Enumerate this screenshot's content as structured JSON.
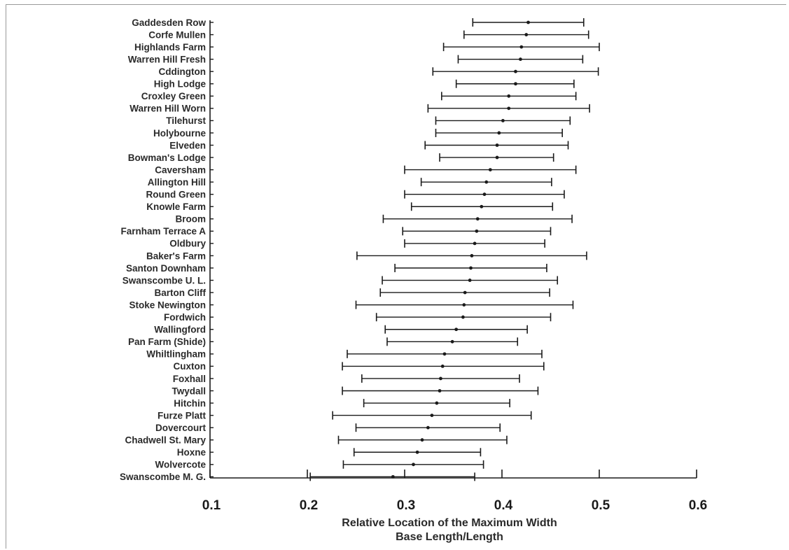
{
  "chart_data": {
    "type": "errorbar",
    "orientation": "horizontal",
    "xlabel": [
      "Relative Location of the Maximum Width",
      "Base Length/Length"
    ],
    "xlim": [
      0.1,
      0.6
    ],
    "xticks": [
      "0.1",
      "0.2",
      "0.3",
      "0.4",
      "0.5",
      "0.6"
    ],
    "grid": false,
    "colors": {
      "marks": "#1a1a1a",
      "text": "#2a2a2a",
      "frame": "#9a9a9a"
    },
    "sites": [
      {
        "name": "Gaddesden Row",
        "mean": 0.427,
        "low": 0.37,
        "high": 0.484
      },
      {
        "name": "Corfe Mullen",
        "mean": 0.425,
        "low": 0.361,
        "high": 0.489
      },
      {
        "name": "Highlands Farm",
        "mean": 0.42,
        "low": 0.34,
        "high": 0.5
      },
      {
        "name": "Warren Hill Fresh",
        "mean": 0.419,
        "low": 0.355,
        "high": 0.483
      },
      {
        "name": "Cddington",
        "mean": 0.414,
        "low": 0.329,
        "high": 0.499
      },
      {
        "name": "High Lodge",
        "mean": 0.414,
        "low": 0.353,
        "high": 0.474
      },
      {
        "name": "Croxley Green",
        "mean": 0.407,
        "low": 0.338,
        "high": 0.476
      },
      {
        "name": "Warren Hill Worn",
        "mean": 0.407,
        "low": 0.324,
        "high": 0.49
      },
      {
        "name": "Tilehurst",
        "mean": 0.401,
        "low": 0.332,
        "high": 0.47
      },
      {
        "name": "Holybourne",
        "mean": 0.397,
        "low": 0.332,
        "high": 0.462
      },
      {
        "name": "Elveden",
        "mean": 0.395,
        "low": 0.321,
        "high": 0.468
      },
      {
        "name": "Bowman's Lodge",
        "mean": 0.395,
        "low": 0.336,
        "high": 0.453
      },
      {
        "name": "Caversham",
        "mean": 0.388,
        "low": 0.3,
        "high": 0.476
      },
      {
        "name": "Allington Hill",
        "mean": 0.384,
        "low": 0.317,
        "high": 0.451
      },
      {
        "name": "Round Green",
        "mean": 0.382,
        "low": 0.3,
        "high": 0.464
      },
      {
        "name": "Knowle Farm",
        "mean": 0.379,
        "low": 0.307,
        "high": 0.452
      },
      {
        "name": "Broom",
        "mean": 0.375,
        "low": 0.278,
        "high": 0.472
      },
      {
        "name": "Farnham Terrace A",
        "mean": 0.374,
        "low": 0.298,
        "high": 0.45
      },
      {
        "name": "Oldbury",
        "mean": 0.372,
        "low": 0.3,
        "high": 0.444
      },
      {
        "name": "Baker's Farm",
        "mean": 0.369,
        "low": 0.251,
        "high": 0.487
      },
      {
        "name": "Santon Downham",
        "mean": 0.368,
        "low": 0.29,
        "high": 0.446
      },
      {
        "name": "Swanscombe U. L.",
        "mean": 0.367,
        "low": 0.277,
        "high": 0.457
      },
      {
        "name": "Barton Cliff",
        "mean": 0.362,
        "low": 0.275,
        "high": 0.449
      },
      {
        "name": "Stoke Newington",
        "mean": 0.361,
        "low": 0.25,
        "high": 0.473
      },
      {
        "name": "Fordwich",
        "mean": 0.36,
        "low": 0.271,
        "high": 0.45
      },
      {
        "name": "Wallingford",
        "mean": 0.353,
        "low": 0.28,
        "high": 0.426
      },
      {
        "name": "Pan Farm (Shide)",
        "mean": 0.349,
        "low": 0.282,
        "high": 0.416
      },
      {
        "name": "Whiltlingham",
        "mean": 0.341,
        "low": 0.241,
        "high": 0.441
      },
      {
        "name": "Cuxton",
        "mean": 0.339,
        "low": 0.236,
        "high": 0.443
      },
      {
        "name": "Foxhall",
        "mean": 0.337,
        "low": 0.256,
        "high": 0.418
      },
      {
        "name": "Twydall",
        "mean": 0.336,
        "low": 0.236,
        "high": 0.437
      },
      {
        "name": "Hitchin",
        "mean": 0.333,
        "low": 0.258,
        "high": 0.408
      },
      {
        "name": "Furze Platt",
        "mean": 0.328,
        "low": 0.226,
        "high": 0.43
      },
      {
        "name": "Dovercourt",
        "mean": 0.324,
        "low": 0.25,
        "high": 0.398
      },
      {
        "name": "Chadwell St. Mary",
        "mean": 0.318,
        "low": 0.232,
        "high": 0.405
      },
      {
        "name": "Hoxne",
        "mean": 0.313,
        "low": 0.248,
        "high": 0.378
      },
      {
        "name": "Wolvercote",
        "mean": 0.309,
        "low": 0.237,
        "high": 0.381
      },
      {
        "name": "Swanscombe M. G.",
        "mean": 0.288,
        "low": 0.203,
        "high": 0.372
      }
    ]
  }
}
